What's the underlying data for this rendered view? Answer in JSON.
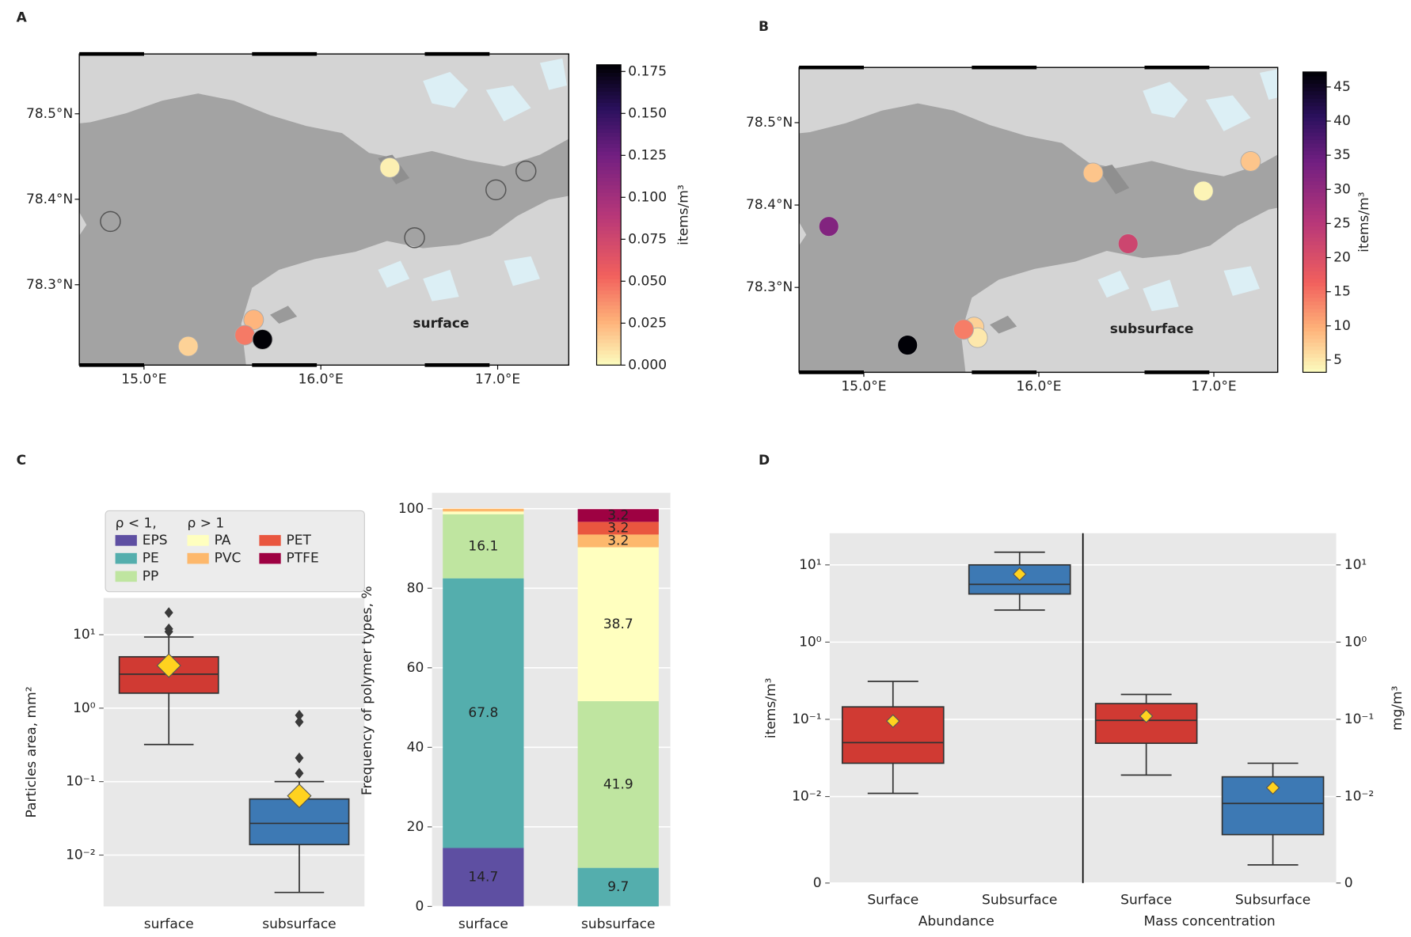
{
  "chart_data": [
    {
      "type": "map",
      "panel": "A",
      "annotation": "surface",
      "x": [
        14.81,
        16.39,
        16.99,
        17.16,
        16.53,
        15.62,
        15.25,
        15.57,
        15.67
      ],
      "y": [
        78.374,
        78.437,
        78.411,
        78.433,
        78.355,
        78.259,
        78.228,
        78.241,
        78.236
      ],
      "values": [
        null,
        0.005,
        null,
        null,
        null,
        0.025,
        0.015,
        0.045,
        0.178
      ],
      "xlim": [
        14.634,
        17.402
      ],
      "ylim": [
        78.206,
        78.57
      ],
      "xticks": [
        {
          "value": 15,
          "label": "15.0°E"
        },
        {
          "value": 16,
          "label": "16.0°E"
        },
        {
          "value": 17,
          "label": "17.0°E"
        }
      ],
      "yticks": [
        {
          "value": 78.3,
          "label": "78.3°N"
        },
        {
          "value": 78.4,
          "label": "78.4°N"
        },
        {
          "value": 78.5,
          "label": "78.5°N"
        }
      ],
      "colormap": "magma_r",
      "colorbar": {
        "label": "items/m³",
        "lim": [
          0,
          0.179
        ],
        "ticks": [
          {
            "value": 0,
            "label": "0.000"
          },
          0.025,
          {
            "value": 0.05,
            "label": "0.050"
          },
          0.075,
          {
            "value": 0.1,
            "label": "0.100"
          },
          0.125,
          {
            "value": 0.15,
            "label": "0.150"
          },
          0.175
        ]
      }
    },
    {
      "type": "map",
      "panel": "B",
      "annotation": "subsurface",
      "x": [
        14.8,
        16.31,
        16.94,
        17.21,
        16.51,
        15.63,
        15.65,
        15.57,
        15.25
      ],
      "y": [
        78.374,
        78.439,
        78.417,
        78.453,
        78.353,
        78.252,
        78.239,
        78.249,
        78.23
      ],
      "values": [
        32,
        8,
        4,
        8,
        22,
        7,
        5,
        14,
        47
      ],
      "xlim": [
        14.63,
        17.365
      ],
      "ylim": [
        78.197,
        78.567
      ],
      "xticks": [
        {
          "value": 15,
          "label": "15.0°E"
        },
        {
          "value": 16,
          "label": "16.0°E"
        },
        {
          "value": 17,
          "label": "17.0°E"
        }
      ],
      "yticks": [
        {
          "value": 78.3,
          "label": "78.3°N"
        },
        {
          "value": 78.4,
          "label": "78.4°N"
        },
        {
          "value": 78.5,
          "label": "78.5°N"
        }
      ],
      "colormap": "magma_r",
      "colorbar": {
        "label": "items/m³",
        "lim": [
          3.2,
          47.2
        ],
        "ticks": [
          5,
          10,
          15,
          20,
          25,
          30,
          35,
          40,
          45
        ]
      }
    },
    {
      "type": "box",
      "panel": "C",
      "ylabel": "Particles area, mm²",
      "categories": [
        "surface",
        "subsurface"
      ],
      "boxes": [
        {
          "color": "#d03a33",
          "whislo": 0.32,
          "q1": 1.6,
          "med": 2.9,
          "q3": 5.0,
          "whishi": 9.3,
          "mean": 3.8,
          "fliers": [
            20,
            12,
            11
          ]
        },
        {
          "color": "#3d79b4",
          "whislo": 0.0031,
          "q1": 0.0139,
          "med": 0.027,
          "q3": 0.058,
          "whishi": 0.1,
          "mean": 0.064,
          "fliers": [
            0.8,
            0.65,
            0.21,
            0.13
          ]
        }
      ],
      "yscale": "log",
      "ylim": [
        0.002,
        31.6
      ],
      "yticks": [
        {
          "value": 0.01,
          "label": "10⁻²"
        },
        {
          "value": 0.1,
          "label": "10⁻¹"
        },
        {
          "value": 1,
          "label": "10⁰"
        },
        {
          "value": 10,
          "label": "10¹"
        }
      ],
      "grid": true
    },
    {
      "type": "stacked_bar",
      "ylabel": "Frequency of polymer types, %",
      "categories": [
        "surface",
        "subsurface"
      ],
      "series": [
        {
          "name": "EPS",
          "color": "#5e4fa2",
          "values": [
            14.7,
            0
          ]
        },
        {
          "name": "PE",
          "color": "#54aead",
          "values": [
            67.8,
            9.7
          ]
        },
        {
          "name": "PP",
          "color": "#bfe5a0",
          "values": [
            16.1,
            41.9
          ]
        },
        {
          "name": "PA",
          "color": "#ffffbf",
          "values": [
            0.7,
            38.7
          ]
        },
        {
          "name": "PVC",
          "color": "#fdb86c",
          "values": [
            0.7,
            3.2
          ]
        },
        {
          "name": "PET",
          "color": "#e9563f",
          "values": [
            0,
            3.2
          ]
        },
        {
          "name": "PTFE",
          "color": "#9e0142",
          "values": [
            0,
            3.2
          ]
        }
      ],
      "legend": {
        "titles": [
          "ρ < 1,",
          "ρ > 1"
        ]
      },
      "ylim": [
        0,
        104
      ],
      "yticks": [
        0,
        20,
        40,
        60,
        80,
        100
      ],
      "grid": true
    },
    {
      "type": "box",
      "panel": "D",
      "ylabel": "items/m³",
      "y2label": "mg/m³",
      "categories": [
        "Surface",
        "Subsurface",
        "Surface",
        "Subsurface"
      ],
      "groups": [
        "Abundance",
        "Mass concentration"
      ],
      "boxes": [
        {
          "color": "#d03a33",
          "whislo": 0.011,
          "q1": 0.027,
          "med": 0.05,
          "q3": 0.145,
          "whishi": 0.31,
          "mean": 0.095,
          "fliers": []
        },
        {
          "color": "#3d79b4",
          "whislo": 2.6,
          "q1": 4.2,
          "med": 5.6,
          "q3": 10,
          "whishi": 14.6,
          "mean": 7.6,
          "fliers": []
        },
        {
          "color": "#d03a33",
          "axis": "y2",
          "whislo": 0.019,
          "q1": 0.049,
          "med": 0.097,
          "q3": 0.16,
          "whishi": 0.21,
          "mean": 0.11,
          "fliers": []
        },
        {
          "color": "#3d79b4",
          "axis": "y2",
          "whislo": 0.0021,
          "q1": 0.0056,
          "med": 0.0092,
          "q3": 0.018,
          "whishi": 0.027,
          "mean": 0.013,
          "fliers": []
        }
      ],
      "yscale": "symlog",
      "linthresh": 0.01,
      "linscale": 1.12,
      "ylim": [
        0,
        25.7
      ],
      "yticks": [
        0,
        {
          "value": 0.01,
          "label": "10⁻²"
        },
        {
          "value": 0.1,
          "label": "10⁻¹"
        },
        {
          "value": 1,
          "label": "10⁰"
        },
        {
          "value": 10,
          "label": "10¹"
        }
      ],
      "y2lim": [
        0,
        25.7
      ],
      "y2ticks": [
        0,
        {
          "value": 0.01,
          "label": "10⁻²"
        },
        {
          "value": 0.1,
          "label": "10⁻¹"
        },
        {
          "value": 1,
          "label": "10⁰"
        },
        {
          "value": 10,
          "label": "10¹"
        }
      ],
      "grid": true
    }
  ]
}
